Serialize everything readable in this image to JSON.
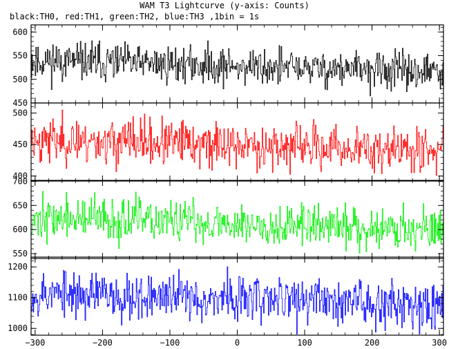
{
  "title": "WAM T3 Lightcurve (y-axis: Counts)",
  "subtitle": "black:TH0, red:TH1, green:TH2, blue:TH3 ,1bin = 1s",
  "chart_data": {
    "type": "line",
    "x": {
      "min": -306,
      "max": 306,
      "step": 1,
      "ticks": [
        -300,
        -200,
        -100,
        0,
        100,
        200,
        300
      ],
      "minor_step": 20
    },
    "panels": [
      {
        "name": "TH0",
        "color": "#000000",
        "ylim": [
          450,
          615
        ],
        "yticks": [
          450,
          500,
          550,
          600
        ],
        "mean_start": 540,
        "mean_end": 515,
        "noise": 20,
        "seed": 11
      },
      {
        "name": "TH1",
        "color": "#ff0000",
        "ylim": [
          392,
          516
        ],
        "yticks": [
          400,
          450,
          500
        ],
        "mean_start": 458,
        "mean_end": 440,
        "noise": 18,
        "seed": 23
      },
      {
        "name": "TH2",
        "color": "#00ee00",
        "ylim": [
          540,
          702
        ],
        "yticks": [
          550,
          600,
          650,
          700
        ],
        "mean_start": 625,
        "mean_end": 600,
        "noise": 22,
        "seed": 37
      },
      {
        "name": "TH3",
        "color": "#0000ff",
        "ylim": [
          978,
          1232
        ],
        "yticks": [
          1000,
          1100,
          1200
        ],
        "mean_start": 1115,
        "mean_end": 1080,
        "noise": 38,
        "seed": 53
      }
    ]
  }
}
